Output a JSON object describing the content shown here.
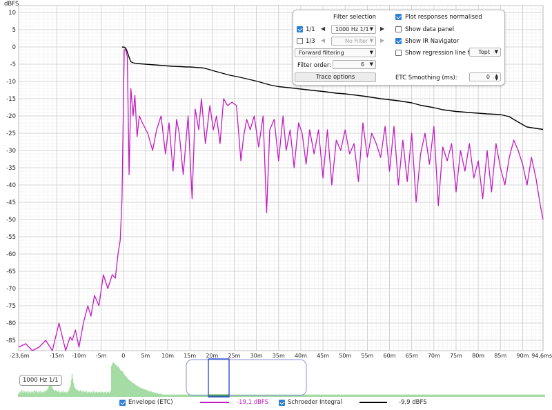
{
  "chart_data": {
    "type": "line",
    "ylabel": "dBFS",
    "xlabel": "",
    "xlim": [
      -23.6,
      94.6
    ],
    "ylim": [
      -88,
      12
    ],
    "y_ticks": [
      10,
      5,
      0,
      -5,
      -10,
      -15,
      -20,
      -25,
      -30,
      -35,
      -40,
      -45,
      -50,
      -55,
      -60,
      -65,
      -70,
      -75,
      -80,
      -85
    ],
    "y_tick_labels": [
      "10",
      "5",
      "0",
      "-5",
      "-10",
      "-15",
      "-20",
      "-25",
      "-30",
      "-35",
      "-40",
      "-45",
      "-50",
      "-55",
      "-60",
      "-65",
      "-70",
      "-75",
      "-80",
      "-85"
    ],
    "x_ticks": [
      -23.6,
      -15,
      -10,
      -5,
      0,
      5,
      10,
      15,
      20,
      25,
      30,
      35,
      40,
      45,
      50,
      55,
      60,
      65,
      70,
      75,
      80,
      85,
      90,
      94.6
    ],
    "x_tick_labels": [
      "-23,6m",
      "-15m",
      "-10m",
      "-5m",
      "0",
      "5m",
      "10m",
      "15m",
      "20m",
      "25m",
      "30m",
      "35m",
      "40m",
      "45m",
      "50m",
      "55m",
      "60m",
      "65m",
      "70m",
      "75m",
      "80m",
      "85m",
      "90m",
      "94,6ms"
    ],
    "grid": true,
    "series": [
      {
        "name": "Envelope (ETC)",
        "color": "#c21bc2",
        "readout": "-19,1 dBFS",
        "x": [
          -23.6,
          -22,
          -20.5,
          -19,
          -17.5,
          -16,
          -14.5,
          -13,
          -12,
          -11.5,
          -10.8,
          -10,
          -9,
          -8,
          -7.3,
          -6.5,
          -5.5,
          -4.5,
          -3.5,
          -2.5,
          -1.8,
          -1.2,
          -0.7,
          -0.3,
          0.2,
          0.5,
          0.9,
          1.3,
          1.7,
          2.2,
          2.6,
          3.1,
          3.6,
          4.3,
          5.5,
          6.6,
          7.5,
          8.5,
          9.5,
          10.3,
          11.2,
          12,
          12.6,
          13.5,
          14.6,
          15.5,
          16.2,
          17,
          17.6,
          18.5,
          19.5,
          20.3,
          21,
          21.8,
          22.6,
          23.5,
          24.5,
          25.5,
          26.5,
          27.1,
          27.8,
          28.6,
          29.5,
          30.5,
          31.5,
          32.3,
          33,
          34,
          35,
          36,
          36.7,
          37.6,
          38.5,
          39.5,
          40.3,
          41.2,
          42,
          43,
          44,
          45,
          46,
          47,
          48,
          49,
          50,
          51,
          52,
          53,
          54,
          55,
          56,
          57,
          58,
          59,
          60,
          61,
          62,
          63,
          64,
          65,
          66,
          67,
          68,
          69,
          70,
          71,
          72,
          73,
          74,
          75,
          76,
          77,
          78,
          79,
          80,
          81,
          82,
          83,
          84,
          85,
          86,
          87,
          88,
          89,
          90,
          91,
          92,
          93,
          94,
          94.6
        ],
        "y": [
          -87,
          -86,
          -88,
          -87,
          -85,
          -88,
          -80,
          -88,
          -84,
          -85,
          -82,
          -87,
          -80,
          -75,
          -78,
          -72,
          -75,
          -66,
          -70,
          -66,
          -67,
          -60,
          -56,
          -44,
          -1,
          -0.5,
          -3,
          -37,
          -12,
          -20,
          -14,
          -26,
          -20,
          -22,
          -25,
          -30,
          -24,
          -20,
          -31,
          -22,
          -36,
          -21,
          -25,
          -37,
          -20,
          -44,
          -18,
          -24,
          -15,
          -28,
          -17,
          -24,
          -20,
          -28,
          -15,
          -17,
          -16,
          -17,
          -33,
          -26,
          -21,
          -24,
          -20,
          -29,
          -20,
          -48,
          -24,
          -21,
          -33,
          -20,
          -30,
          -24,
          -35,
          -22,
          -25,
          -34,
          -24,
          -31,
          -24,
          -38,
          -24,
          -40,
          -27,
          -30,
          -24,
          -31,
          -28,
          -39,
          -22,
          -32,
          -25,
          -28,
          -32,
          -23,
          -36,
          -23,
          -40,
          -27,
          -39,
          -25,
          -45,
          -31,
          -25,
          -34,
          -23,
          -46,
          -29,
          -33,
          -28,
          -42,
          -30,
          -36,
          -28,
          -38,
          -33,
          -44,
          -30,
          -42,
          -28,
          -35,
          -40,
          -32,
          -27,
          -30,
          -34,
          -40,
          -32,
          -38,
          -46,
          -50
        ]
      },
      {
        "name": "Schroeder Integral",
        "color": "#000000",
        "readout": "-9,9 dBFS",
        "x": [
          -0.3,
          0.3,
          0.6,
          0.9,
          1.3,
          1.7,
          2.2,
          3,
          5,
          8,
          11,
          13,
          14,
          15,
          16,
          17,
          18,
          19,
          20,
          22,
          24,
          26,
          28,
          30,
          33,
          35,
          38,
          40,
          42,
          45,
          48,
          50,
          52,
          55,
          58,
          60,
          62,
          65,
          67,
          70,
          72,
          75,
          78,
          80,
          82,
          85,
          87,
          88,
          90,
          91,
          93,
          94.6
        ],
        "y": [
          0,
          -0.1,
          -0.5,
          -1.5,
          -3,
          -4.3,
          -4.6,
          -4.8,
          -5,
          -5.3,
          -5.6,
          -5.7,
          -5.8,
          -5.8,
          -5.9,
          -6,
          -6.1,
          -6.4,
          -6.8,
          -7.5,
          -8.2,
          -8.7,
          -9.3,
          -9.9,
          -11,
          -11.5,
          -11.9,
          -12.2,
          -12.5,
          -12.9,
          -13.4,
          -13.6,
          -13.9,
          -14.4,
          -15,
          -15.3,
          -15.6,
          -16.2,
          -16.9,
          -17.6,
          -18.2,
          -18.7,
          -19,
          -19.2,
          -19.4,
          -19.6,
          -20.2,
          -21,
          -22.5,
          -23.2,
          -23.6,
          -23.9
        ]
      }
    ]
  },
  "overview": {
    "label": "1000 Hz 1/1",
    "color_fill": "#a5dca5",
    "color_selected": "#0a8a0a",
    "color_window": "#8c8cd4",
    "bars": [
      4,
      6,
      5,
      7,
      5,
      9,
      6,
      8,
      5,
      7,
      6,
      5,
      7,
      6,
      8,
      5,
      6,
      7,
      5,
      6,
      8,
      6,
      5,
      7,
      9,
      6,
      8,
      7,
      6,
      5,
      7,
      6,
      8,
      5,
      6,
      6,
      7,
      5,
      6,
      8,
      7,
      9,
      8,
      10,
      12,
      14,
      18,
      22,
      20,
      16,
      12,
      10,
      9,
      8,
      7,
      9,
      8,
      7,
      6,
      8,
      7,
      6,
      5,
      6,
      7,
      6,
      8,
      5,
      6,
      7,
      6,
      5,
      6,
      7,
      8,
      10,
      12,
      16,
      22,
      30,
      24,
      18,
      14,
      12,
      11,
      10,
      9,
      9,
      8,
      8,
      7,
      8,
      9,
      7,
      6,
      8,
      7,
      6,
      7,
      6,
      8,
      6,
      5,
      6,
      7,
      6,
      5,
      6,
      7,
      5,
      6,
      8,
      6,
      5,
      6,
      7,
      6,
      5,
      6,
      7,
      6,
      6,
      5,
      7,
      6,
      5,
      6,
      6,
      7,
      6,
      5,
      6,
      7,
      6,
      5,
      6,
      8,
      40,
      42,
      44,
      45,
      44,
      43,
      42,
      41,
      40,
      39,
      40,
      38,
      37,
      35,
      34,
      33,
      34,
      32,
      30,
      29,
      28,
      27,
      26,
      25,
      24,
      23,
      22,
      21,
      21,
      20,
      19,
      18,
      18,
      17,
      17,
      16,
      15,
      15,
      14,
      14,
      13,
      13,
      12,
      12,
      11,
      11,
      11,
      10,
      10,
      10,
      9,
      9,
      9,
      8,
      8,
      8,
      7,
      7,
      7,
      7,
      6,
      6,
      6,
      6,
      5,
      5,
      5,
      5,
      5,
      4,
      4,
      4,
      4,
      4,
      4,
      3,
      3,
      3,
      3,
      3,
      3,
      3,
      3,
      3,
      3,
      3,
      3,
      3,
      3,
      3,
      3,
      3,
      3,
      3,
      3,
      3,
      3,
      3,
      3,
      3,
      3,
      3,
      3,
      3,
      3,
      3,
      3,
      3,
      3,
      3,
      3,
      3,
      3,
      3,
      3,
      3,
      3,
      3,
      3,
      3,
      3,
      3,
      3,
      3,
      3,
      3,
      3,
      3,
      3,
      3,
      3,
      3,
      3,
      3,
      3,
      3,
      3,
      3,
      3,
      3,
      3,
      3,
      3,
      3,
      3,
      3,
      3,
      3,
      3,
      3,
      3,
      3,
      3,
      3,
      3,
      3,
      3,
      3,
      3,
      3,
      3,
      3,
      3,
      3,
      3,
      3,
      3,
      3,
      3,
      3,
      3,
      3,
      3,
      3,
      3,
      3,
      3,
      3,
      3,
      3,
      3,
      3,
      3,
      3,
      3,
      3,
      3,
      3,
      3,
      3,
      3,
      3,
      3,
      3,
      3,
      3,
      3,
      3,
      3,
      3,
      3,
      3,
      3,
      3,
      3,
      3,
      3,
      3,
      3,
      3,
      3,
      3,
      3,
      3,
      3,
      3,
      3,
      3,
      3,
      3,
      3,
      3,
      3,
      3,
      3,
      3,
      3,
      3,
      3,
      3,
      3,
      3,
      3,
      3,
      3,
      3,
      3,
      3,
      3,
      3,
      3,
      3,
      3,
      3,
      3,
      3,
      3,
      3,
      3,
      3,
      3,
      3,
      3,
      3,
      3,
      3,
      3,
      3,
      3,
      3,
      3,
      3,
      3,
      3,
      3,
      3,
      3,
      3,
      3,
      3,
      3,
      3,
      3,
      3,
      3,
      3,
      3,
      3,
      3,
      3,
      3,
      3,
      3,
      3,
      3,
      3,
      3,
      3,
      3,
      3,
      3,
      3,
      3,
      3,
      3,
      3,
      3,
      3,
      3,
      3,
      3,
      3,
      3,
      3,
      3,
      3,
      3,
      3,
      3,
      3,
      3,
      3,
      3,
      3,
      3,
      3,
      3,
      3,
      3,
      3,
      3,
      3,
      3,
      3,
      3,
      3,
      3,
      3,
      3,
      3,
      3,
      3,
      3,
      3,
      3,
      3,
      3,
      3,
      3,
      3,
      3,
      3,
      3,
      3,
      3,
      3,
      3,
      3,
      3,
      3,
      3,
      3,
      3,
      3,
      3,
      3,
      3,
      3,
      3,
      3,
      3,
      3,
      3,
      3,
      3,
      3,
      3,
      3,
      3,
      3,
      3,
      3,
      3,
      3,
      3,
      3,
      3,
      3,
      3,
      3,
      3,
      3,
      3,
      3,
      3,
      3,
      3,
      3,
      3,
      3,
      3,
      3,
      3,
      3,
      3,
      3,
      3,
      3,
      3,
      3,
      3,
      3,
      3,
      3,
      3,
      3,
      3,
      3,
      3,
      3,
      3,
      3,
      3,
      3,
      3,
      3,
      3,
      3,
      3,
      3,
      3,
      3,
      3,
      3,
      3,
      3,
      3,
      3,
      3,
      3,
      3,
      3,
      3,
      3,
      3,
      3,
      3,
      3,
      3,
      3,
      3,
      3,
      3,
      3,
      3,
      3,
      3,
      3,
      3,
      3,
      3,
      3,
      3,
      3,
      3,
      3,
      3,
      3,
      3,
      3,
      3,
      3,
      3,
      3,
      3,
      3,
      3,
      3,
      3,
      3,
      3,
      3,
      3,
      3,
      3,
      3,
      3,
      3,
      3,
      3,
      3,
      3,
      3,
      3,
      3,
      3,
      3,
      3,
      3,
      3,
      3,
      3,
      3,
      3,
      3,
      3,
      3,
      3,
      3,
      3,
      3,
      3,
      3,
      3,
      3,
      3,
      3,
      3,
      3,
      3,
      3,
      3,
      3,
      3,
      3,
      3,
      3,
      3,
      3,
      3,
      3,
      3,
      3,
      3,
      3,
      3,
      3,
      3,
      3,
      3,
      3,
      3,
      3,
      3,
      3,
      3,
      3,
      3,
      3,
      3,
      3,
      3,
      3,
      3,
      3,
      3,
      3,
      3,
      3,
      3,
      3,
      3,
      3,
      3,
      3,
      3,
      3,
      3,
      3,
      3,
      3,
      3,
      3,
      3,
      3,
      3,
      3,
      3,
      3,
      3,
      3,
      3,
      3,
      3,
      3,
      3,
      3,
      3,
      3,
      3,
      3,
      3,
      3,
      3,
      3,
      3,
      3,
      3,
      3,
      3,
      3,
      3,
      3,
      3,
      3,
      3,
      3,
      3,
      3,
      3,
      3,
      3,
      3,
      3,
      3,
      3,
      3,
      3,
      3,
      3,
      3,
      3,
      3,
      3,
      3,
      3,
      3,
      3,
      3,
      3,
      3,
      3,
      3,
      3,
      3,
      3,
      3,
      3,
      3,
      3,
      3,
      3,
      3,
      3,
      3,
      3,
      3,
      3,
      3
    ]
  },
  "filter_panel": {
    "title": "Filter selection",
    "octave_1_1": "1/1",
    "octave_1_3": "1/3",
    "octave_1_1_checked": true,
    "octave_1_3_checked": false,
    "band_1_1": "1000 Hz 1/1",
    "band_1_3": "No Filter",
    "filtering": "Forward filtering",
    "filter_order_label": "Filter order:",
    "filter_order": "6",
    "trace_options": "Trace options",
    "plot_normalised": "Plot responses normalised",
    "plot_normalised_checked": true,
    "show_data_panel": "Show data panel",
    "show_data_panel_checked": false,
    "show_ir_navigator": "Show IR Navigator",
    "show_ir_navigator_checked": true,
    "show_regression": "Show regression line for:",
    "show_regression_checked": false,
    "regression_target": "Topt",
    "etc_smoothing_label": "ETC Smoothing (ms):",
    "etc_smoothing": "0"
  },
  "legend": {
    "envelope_label": "Envelope (ETC)",
    "envelope_checked": true,
    "envelope_value": "-19,1 dBFS",
    "schroeder_label": "Schroeder Integral",
    "schroeder_checked": true,
    "schroeder_value": "-9,9 dBFS"
  }
}
